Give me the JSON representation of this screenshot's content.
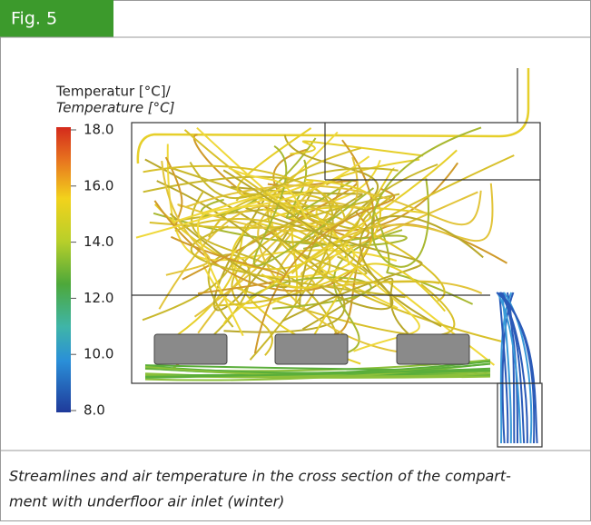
{
  "figure": {
    "label": "Fig. 5",
    "legend": {
      "title": [
        "Temperatur [°C]/",
        "Temperature [°C]"
      ],
      "range": [
        8,
        18
      ],
      "ticks": [
        {
          "value": 18,
          "label": "18.0"
        },
        {
          "value": 16,
          "label": "16.0"
        },
        {
          "value": 14,
          "label": "14.0"
        },
        {
          "value": 12,
          "label": "12.0"
        },
        {
          "value": 10,
          "label": "10.0"
        },
        {
          "value": 8,
          "label": "8.0"
        }
      ]
    },
    "caption": [
      "Streamlines and air temperature in the cross section of the compart-",
      "ment with underfloor air inlet (winter)"
    ]
  }
}
